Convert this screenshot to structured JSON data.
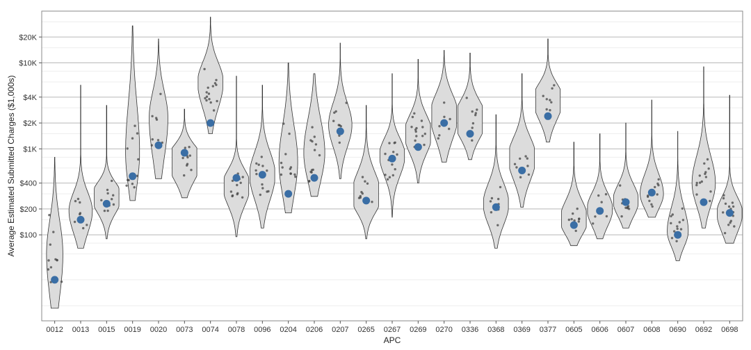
{
  "chart_data": {
    "type": "violin",
    "xlabel": "APC",
    "ylabel": "Average Estimated Submitted Charges ($1,000s)",
    "y_scale": "log10",
    "ylim": [
      10,
      40000
    ],
    "ytick_values": [
      100,
      200,
      400,
      1000,
      2000,
      4000,
      10000,
      20000
    ],
    "ytick_labels": [
      "$100",
      "$200",
      "$400",
      "$1K",
      "$2K",
      "$4K",
      "$10K",
      "$20K"
    ],
    "grid": true,
    "colors": {
      "violin_fill": "#dcdcdc",
      "violin_stroke": "#333333",
      "mean_point": "#3a6ea5",
      "jitter_point": "#444444",
      "gridline": "#b8b8b8",
      "minor_gridline": "#eeeeee",
      "panel_border": "#888888"
    },
    "categories": [
      "0012",
      "0013",
      "0015",
      "0019",
      "0020",
      "0073",
      "0074",
      "0078",
      "0096",
      "0204",
      "0206",
      "0207",
      "0265",
      "0267",
      "0269",
      "0270",
      "0336",
      "0368",
      "0369",
      "0377",
      "0605",
      "0606",
      "0607",
      "0608",
      "0690",
      "0692",
      "0698"
    ],
    "violins": [
      {
        "min": 14,
        "max": 800,
        "q1": 25,
        "median": 60,
        "q3": 120,
        "mean": 30,
        "width": 0.35
      },
      {
        "min": 70,
        "max": 5500,
        "q1": 120,
        "median": 190,
        "q3": 280,
        "mean": 150,
        "width": 0.5
      },
      {
        "min": 90,
        "max": 3200,
        "q1": 200,
        "median": 280,
        "q3": 370,
        "mean": 230,
        "width": 0.65
      },
      {
        "min": 250,
        "max": 27000,
        "q1": 450,
        "median": 900,
        "q3": 2500,
        "mean": 480,
        "width": 0.3
      },
      {
        "min": 450,
        "max": 19000,
        "q1": 1000,
        "median": 2300,
        "q3": 4000,
        "mean": 1100,
        "width": 0.4
      },
      {
        "min": 270,
        "max": 2900,
        "q1": 500,
        "median": 750,
        "q3": 1000,
        "mean": 900,
        "width": 0.75
      },
      {
        "min": 1500,
        "max": 34000,
        "q1": 3500,
        "median": 6000,
        "q3": 9000,
        "mean": 2000,
        "width": 0.55
      },
      {
        "min": 95,
        "max": 7000,
        "q1": 250,
        "median": 380,
        "q3": 520,
        "mean": 460,
        "width": 0.6
      },
      {
        "min": 120,
        "max": 5500,
        "q1": 300,
        "median": 500,
        "q3": 800,
        "mean": 500,
        "width": 0.55
      },
      {
        "min": 180,
        "max": 10000,
        "q1": 350,
        "median": 700,
        "q3": 1500,
        "mean": 300,
        "width": 0.4
      },
      {
        "min": 280,
        "max": 7500,
        "q1": 500,
        "median": 900,
        "q3": 1800,
        "mean": 460,
        "width": 0.45
      },
      {
        "min": 450,
        "max": 17000,
        "q1": 1200,
        "median": 1900,
        "q3": 3000,
        "mean": 1600,
        "width": 0.5
      },
      {
        "min": 90,
        "max": 3200,
        "q1": 200,
        "median": 280,
        "q3": 450,
        "mean": 250,
        "width": 0.65
      },
      {
        "min": 160,
        "max": 7500,
        "q1": 550,
        "median": 850,
        "q3": 1200,
        "mean": 770,
        "width": 0.55
      },
      {
        "min": 400,
        "max": 11000,
        "q1": 1000,
        "median": 1500,
        "q3": 2200,
        "mean": 1050,
        "width": 0.6
      },
      {
        "min": 700,
        "max": 14000,
        "q1": 1500,
        "median": 2500,
        "q3": 3800,
        "mean": 2000,
        "width": 0.6
      },
      {
        "min": 750,
        "max": 13000,
        "q1": 1500,
        "median": 2200,
        "q3": 3200,
        "mean": 1500,
        "width": 0.7
      },
      {
        "min": 70,
        "max": 2500,
        "q1": 150,
        "median": 230,
        "q3": 350,
        "mean": 210,
        "width": 0.55
      },
      {
        "min": 210,
        "max": 7500,
        "q1": 500,
        "median": 800,
        "q3": 1200,
        "mean": 560,
        "width": 0.6
      },
      {
        "min": 1200,
        "max": 19000,
        "q1": 2500,
        "median": 3800,
        "q3": 5200,
        "mean": 2400,
        "width": 0.65
      },
      {
        "min": 75,
        "max": 1200,
        "q1": 110,
        "median": 150,
        "q3": 220,
        "mean": 130,
        "width": 0.6
      },
      {
        "min": 90,
        "max": 1500,
        "q1": 140,
        "median": 200,
        "q3": 280,
        "mean": 190,
        "width": 0.55
      },
      {
        "min": 120,
        "max": 2000,
        "q1": 180,
        "median": 250,
        "q3": 350,
        "mean": 240,
        "width": 0.55
      },
      {
        "min": 160,
        "max": 3700,
        "q1": 220,
        "median": 300,
        "q3": 450,
        "mean": 310,
        "width": 0.5
      },
      {
        "min": 50,
        "max": 1600,
        "q1": 80,
        "median": 110,
        "q3": 180,
        "mean": 100,
        "width": 0.45
      },
      {
        "min": 120,
        "max": 9000,
        "q1": 250,
        "median": 400,
        "q3": 700,
        "mean": 240,
        "width": 0.5
      },
      {
        "min": 80,
        "max": 4200,
        "q1": 120,
        "median": 180,
        "q3": 250,
        "mean": 180,
        "width": 0.55
      }
    ]
  }
}
